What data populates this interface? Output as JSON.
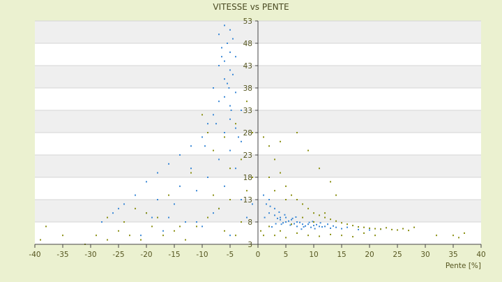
{
  "chart_data": {
    "type": "scatter",
    "title": "VITESSE vs PENTE",
    "xlabel": "Pente [%]",
    "ylabel": "",
    "xlim": [
      -40,
      40
    ],
    "ylim": [
      3,
      53
    ],
    "x_ticks": [
      -40,
      -35,
      -30,
      -25,
      -20,
      -15,
      -10,
      -5,
      0,
      5,
      10,
      15,
      20,
      25,
      30,
      35,
      40
    ],
    "y_ticks": [
      3,
      8,
      13,
      18,
      23,
      28,
      33,
      38,
      43,
      48,
      53
    ],
    "x_tick_labels": [
      "-40",
      "-35",
      "-30",
      "-25",
      "-20",
      "-15",
      "-10",
      "-5",
      "0",
      "5",
      "10",
      "15",
      "20",
      "25",
      "30",
      "35",
      "40"
    ],
    "y_tick_labels": [
      "3",
      "8",
      "13",
      "18",
      "23",
      "28",
      "33",
      "38",
      "43",
      "48",
      "53"
    ],
    "grid": true,
    "legend": "none",
    "series": [
      {
        "color": "#3a88d6",
        "points": [
          [
            -6,
            52
          ],
          [
            -5,
            51
          ],
          [
            -7,
            50
          ],
          [
            -4.5,
            49
          ],
          [
            -5.5,
            48
          ],
          [
            -6.5,
            47
          ],
          [
            -5,
            46
          ],
          [
            -4,
            45
          ],
          [
            -6,
            44
          ],
          [
            -7,
            43
          ],
          [
            -5,
            42
          ],
          [
            -4.5,
            41
          ],
          [
            -6,
            40
          ],
          [
            -5.5,
            39
          ],
          [
            -8,
            38
          ],
          [
            -4,
            37
          ],
          [
            -6,
            36
          ],
          [
            -7,
            35
          ],
          [
            -5,
            34
          ],
          [
            -3,
            33
          ],
          [
            -8,
            32
          ],
          [
            -5,
            31
          ],
          [
            -9,
            30
          ],
          [
            -4,
            29
          ],
          [
            -6,
            28
          ],
          [
            -10,
            27
          ],
          [
            -3,
            26
          ],
          [
            -12,
            25
          ],
          [
            -5,
            24
          ],
          [
            -14,
            23
          ],
          [
            -7,
            22
          ],
          [
            -16,
            21
          ],
          [
            -4,
            20
          ],
          [
            -18,
            19
          ],
          [
            -9,
            18
          ],
          [
            -20,
            17
          ],
          [
            -6,
            16
          ],
          [
            -11,
            15
          ],
          [
            -22,
            14
          ],
          [
            -3,
            13
          ],
          [
            -15,
            12
          ],
          [
            -25,
            11
          ],
          [
            -8,
            10
          ],
          [
            -19,
            9
          ],
          [
            -13,
            8
          ],
          [
            -28,
            8
          ],
          [
            -10,
            7
          ],
          [
            -17,
            6
          ],
          [
            -5,
            5
          ],
          [
            -21,
            5
          ],
          [
            -2,
            9
          ],
          [
            -1,
            12
          ],
          [
            -6.5,
            45
          ],
          [
            -5.2,
            38
          ],
          [
            -4.8,
            33
          ],
          [
            -7.5,
            30
          ],
          [
            -3.5,
            27
          ],
          [
            -9.5,
            25
          ],
          [
            -12,
            20
          ],
          [
            -14,
            16
          ],
          [
            -24,
            12
          ],
          [
            -20,
            10
          ],
          [
            -16,
            9
          ],
          [
            -11,
            8
          ],
          [
            -26,
            10
          ],
          [
            -18,
            13
          ],
          [
            -7,
            11
          ],
          [
            1,
            14
          ],
          [
            2,
            13
          ],
          [
            1.5,
            12
          ],
          [
            3,
            11
          ],
          [
            2,
            10
          ],
          [
            3,
            9.5
          ],
          [
            4,
            9
          ],
          [
            5,
            9
          ],
          [
            4,
            8.5
          ],
          [
            6,
            8.5
          ],
          [
            5,
            8
          ],
          [
            7,
            8
          ],
          [
            6,
            7.5
          ],
          [
            8,
            7.5
          ],
          [
            9,
            7.5
          ],
          [
            10,
            7.2
          ],
          [
            7,
            7
          ],
          [
            11,
            7
          ],
          [
            12,
            7
          ],
          [
            4.5,
            7.8
          ],
          [
            5.5,
            8.2
          ],
          [
            6.5,
            7.6
          ],
          [
            7.5,
            7.9
          ],
          [
            8.5,
            7.1
          ],
          [
            9.5,
            6.8
          ],
          [
            10.5,
            7.4
          ],
          [
            11.5,
            6.9
          ],
          [
            13,
            6.6
          ],
          [
            14,
            6.8
          ],
          [
            3.5,
            8.8
          ],
          [
            4.2,
            7.5
          ],
          [
            5.8,
            7.3
          ],
          [
            6.2,
            8.8
          ],
          [
            8.2,
            6.9
          ],
          [
            9.2,
            7.9
          ],
          [
            10.2,
            6.5
          ],
          [
            12.5,
            7.5
          ],
          [
            15,
            6.5
          ],
          [
            16,
            6.8
          ],
          [
            18,
            6.3
          ],
          [
            20,
            6.2
          ],
          [
            22,
            6.4
          ],
          [
            2.5,
            6.9
          ],
          [
            3.2,
            7.6
          ],
          [
            7.8,
            6.4
          ],
          [
            1.2,
            9
          ],
          [
            4.8,
            9.6
          ],
          [
            6.8,
            9.1
          ],
          [
            9.8,
            8.1
          ],
          [
            11.2,
            7.8
          ],
          [
            13.5,
            7.1
          ],
          [
            2.2,
            11.5
          ],
          [
            3.8,
            10.2
          ]
        ]
      },
      {
        "color": "#8a8f12",
        "points": [
          [
            -39,
            4
          ],
          [
            -38,
            7
          ],
          [
            -35,
            5
          ],
          [
            -31,
            3
          ],
          [
            -29,
            5
          ],
          [
            -27,
            4
          ],
          [
            -25,
            6
          ],
          [
            -23,
            5
          ],
          [
            -21,
            4
          ],
          [
            -19,
            7
          ],
          [
            -17,
            5
          ],
          [
            -15,
            6
          ],
          [
            -13,
            4
          ],
          [
            -11,
            7
          ],
          [
            -9,
            9
          ],
          [
            -7,
            11
          ],
          [
            -5,
            13
          ],
          [
            -3,
            8
          ],
          [
            -2,
            15
          ],
          [
            -1,
            18
          ],
          [
            -8,
            24
          ],
          [
            -6,
            27
          ],
          [
            -4,
            30
          ],
          [
            -10,
            32
          ],
          [
            -3,
            22
          ],
          [
            -12,
            19
          ],
          [
            -16,
            14
          ],
          [
            -20,
            10
          ],
          [
            -24,
            8
          ],
          [
            -27,
            9
          ],
          [
            -2,
            35
          ],
          [
            -1,
            28
          ],
          [
            -4,
            5
          ],
          [
            -6,
            6
          ],
          [
            -14,
            7
          ],
          [
            -18,
            9
          ],
          [
            -22,
            11
          ],
          [
            -8,
            14
          ],
          [
            -5,
            20
          ],
          [
            -9,
            28
          ],
          [
            1,
            27
          ],
          [
            2,
            25
          ],
          [
            3,
            22
          ],
          [
            4,
            19
          ],
          [
            5,
            16
          ],
          [
            6,
            14
          ],
          [
            7,
            13
          ],
          [
            8,
            12
          ],
          [
            9,
            11
          ],
          [
            10,
            10
          ],
          [
            11,
            9.5
          ],
          [
            12,
            9
          ],
          [
            13,
            8.6
          ],
          [
            14,
            8.2
          ],
          [
            15,
            7.8
          ],
          [
            16,
            7.5
          ],
          [
            17,
            7.2
          ],
          [
            18,
            6.9
          ],
          [
            19,
            6.8
          ],
          [
            20,
            6.6
          ],
          [
            21,
            6.5
          ],
          [
            22,
            6.4
          ],
          [
            23,
            6.7
          ],
          [
            24,
            6.3
          ],
          [
            25,
            6.2
          ],
          [
            26,
            6.5
          ],
          [
            27,
            6.1
          ],
          [
            28,
            6.8
          ],
          [
            32,
            5
          ],
          [
            35,
            5
          ],
          [
            36,
            4.5
          ],
          [
            37,
            5.5
          ],
          [
            3,
            5
          ],
          [
            5,
            4.5
          ],
          [
            7,
            5.5
          ],
          [
            9,
            5
          ],
          [
            11,
            4.8
          ],
          [
            13,
            5.2
          ],
          [
            15,
            5
          ],
          [
            17,
            4.7
          ],
          [
            19,
            5.5
          ],
          [
            21,
            5
          ],
          [
            1,
            5
          ],
          [
            0.5,
            6
          ],
          [
            2,
            7
          ],
          [
            4,
            6
          ],
          [
            6,
            7.5
          ],
          [
            8,
            9
          ],
          [
            10,
            8
          ],
          [
            12,
            10
          ],
          [
            14,
            14
          ],
          [
            13,
            17
          ],
          [
            11,
            20
          ],
          [
            9,
            24
          ],
          [
            7,
            28
          ],
          [
            4,
            26
          ],
          [
            5,
            13
          ],
          [
            3,
            15
          ],
          [
            2,
            18
          ]
        ]
      }
    ]
  }
}
